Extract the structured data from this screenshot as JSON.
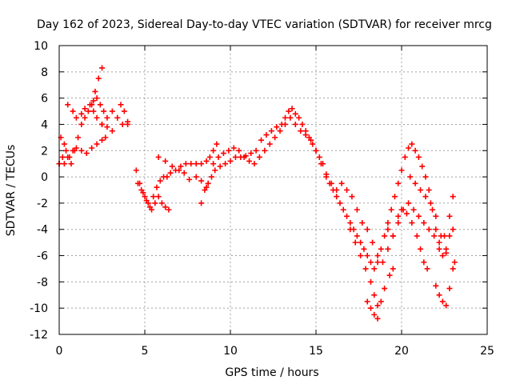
{
  "chart_data": {
    "type": "scatter",
    "title": "Day 162 of 2023, Sidereal Day-to-day VTEC variation (SDTVAR) for receiver mrcg",
    "xlabel": "GPS time / hours",
    "ylabel": "SDTVAR / TECUs",
    "xlim": [
      0,
      25
    ],
    "ylim": [
      -12,
      10
    ],
    "x_ticks": [
      0,
      5,
      10,
      15,
      20,
      25
    ],
    "x_tick_labels": [
      "0",
      "5",
      "10",
      "15",
      "20",
      "25"
    ],
    "y_ticks": [
      -12,
      -10,
      -8,
      -6,
      -4,
      -2,
      0,
      2,
      4,
      6,
      8,
      10
    ],
    "y_tick_labels": [
      "-12",
      "-10",
      "-8",
      "-6",
      "-4",
      "-2",
      "0",
      "2",
      "4",
      "6",
      "8",
      "10"
    ],
    "grid": true,
    "marker": "+",
    "color": "#ff0000",
    "series": [
      {
        "points": [
          [
            0.0,
            1.0
          ],
          [
            0.1,
            3.0
          ],
          [
            0.3,
            2.5
          ],
          [
            0.5,
            5.5
          ],
          [
            0.8,
            5.0
          ],
          [
            1.0,
            4.5
          ],
          [
            1.3,
            4.8
          ],
          [
            1.5,
            5.2
          ],
          [
            1.8,
            5.5
          ],
          [
            2.0,
            5.8
          ],
          [
            2.2,
            6.0
          ],
          [
            2.4,
            5.5
          ],
          [
            2.6,
            5.0
          ]
        ]
      },
      {
        "points": [
          [
            0.0,
            1.0
          ],
          [
            0.2,
            1.5
          ],
          [
            0.4,
            2.0
          ],
          [
            0.6,
            1.5
          ],
          [
            0.8,
            2.0
          ],
          [
            1.0,
            2.2
          ],
          [
            1.3,
            2.0
          ],
          [
            1.6,
            1.8
          ],
          [
            1.9,
            2.2
          ],
          [
            2.2,
            2.5
          ],
          [
            2.5,
            2.8
          ],
          [
            2.7,
            3.0
          ]
        ]
      },
      {
        "points": [
          [
            0.3,
            1.0
          ],
          [
            0.5,
            1.5
          ],
          [
            0.7,
            1.0
          ],
          [
            0.9,
            2.0
          ],
          [
            1.1,
            3.0
          ],
          [
            1.3,
            4.0
          ],
          [
            1.5,
            4.5
          ],
          [
            1.7,
            5.0
          ],
          [
            1.9,
            5.5
          ],
          [
            2.1,
            6.5
          ],
          [
            2.3,
            7.5
          ],
          [
            2.5,
            8.3
          ]
        ]
      },
      {
        "points": [
          [
            2.0,
            5.0
          ],
          [
            2.2,
            4.5
          ],
          [
            2.5,
            4.0
          ],
          [
            2.8,
            4.5
          ],
          [
            3.1,
            5.0
          ],
          [
            3.4,
            4.5
          ],
          [
            3.7,
            4.0
          ],
          [
            4.0,
            4.0
          ]
        ]
      },
      {
        "points": [
          [
            2.5,
            4.0
          ],
          [
            2.8,
            3.8
          ],
          [
            3.1,
            3.5
          ],
          [
            3.4,
            4.5
          ],
          [
            3.6,
            5.5
          ],
          [
            3.8,
            5.0
          ],
          [
            4.0,
            4.2
          ]
        ]
      },
      {
        "points": [
          [
            4.5,
            0.5
          ],
          [
            4.7,
            -0.5
          ],
          [
            4.9,
            -1.2
          ],
          [
            5.1,
            -1.8
          ],
          [
            5.3,
            -2.3
          ],
          [
            5.5,
            -1.5
          ],
          [
            5.7,
            -0.8
          ],
          [
            5.9,
            -0.3
          ],
          [
            6.1,
            0.0
          ],
          [
            6.3,
            0.0
          ],
          [
            6.5,
            0.3
          ],
          [
            6.8,
            0.5
          ],
          [
            7.1,
            0.8
          ],
          [
            7.4,
            1.0
          ],
          [
            7.7,
            1.0
          ],
          [
            8.0,
            1.0
          ],
          [
            8.3,
            1.0
          ],
          [
            8.6,
            1.2
          ],
          [
            8.8,
            1.5
          ],
          [
            9.0,
            2.0
          ],
          [
            9.2,
            2.5
          ]
        ]
      },
      {
        "points": [
          [
            4.6,
            -0.5
          ],
          [
            4.8,
            -1.0
          ],
          [
            5.0,
            -1.5
          ],
          [
            5.2,
            -2.0
          ],
          [
            5.4,
            -2.5
          ],
          [
            5.6,
            -2.0
          ],
          [
            5.8,
            -1.5
          ],
          [
            6.0,
            -2.0
          ],
          [
            6.2,
            -2.3
          ],
          [
            6.4,
            -2.5
          ]
        ]
      },
      {
        "points": [
          [
            5.8,
            1.5
          ],
          [
            6.2,
            1.2
          ],
          [
            6.6,
            0.8
          ],
          [
            7.0,
            0.5
          ],
          [
            7.3,
            0.3
          ],
          [
            7.6,
            -0.2
          ],
          [
            8.0,
            0.0
          ],
          [
            8.3,
            -0.3
          ],
          [
            8.6,
            -0.8
          ]
        ]
      },
      {
        "points": [
          [
            8.3,
            -2.0
          ],
          [
            8.5,
            -1.0
          ],
          [
            8.7,
            -0.5
          ],
          [
            8.9,
            0.0
          ],
          [
            9.1,
            0.5
          ],
          [
            9.4,
            0.8
          ],
          [
            9.7,
            1.0
          ],
          [
            10.0,
            1.2
          ],
          [
            10.3,
            1.5
          ],
          [
            10.6,
            1.5
          ],
          [
            10.9,
            1.6
          ],
          [
            11.2,
            1.8
          ],
          [
            11.5,
            2.0
          ],
          [
            11.8,
            2.8
          ],
          [
            12.1,
            3.2
          ],
          [
            12.4,
            3.5
          ],
          [
            12.7,
            3.8
          ],
          [
            13.0,
            4.0
          ],
          [
            13.2,
            4.5
          ],
          [
            13.4,
            5.0
          ],
          [
            13.6,
            5.2
          ],
          [
            13.8,
            4.8
          ],
          [
            14.0,
            4.5
          ],
          [
            14.2,
            4.0
          ],
          [
            14.4,
            3.5
          ],
          [
            14.6,
            3.0
          ],
          [
            14.8,
            2.5
          ],
          [
            15.0,
            2.0
          ],
          [
            15.2,
            1.5
          ],
          [
            15.4,
            1.0
          ],
          [
            15.6,
            0.2
          ],
          [
            15.8,
            -0.5
          ],
          [
            16.0,
            -1.0
          ],
          [
            16.2,
            -1.5
          ],
          [
            16.4,
            -2.0
          ],
          [
            16.6,
            -2.5
          ],
          [
            16.8,
            -3.0
          ],
          [
            17.0,
            -3.5
          ],
          [
            17.2,
            -4.0
          ],
          [
            17.4,
            -4.5
          ],
          [
            17.6,
            -5.0
          ],
          [
            17.8,
            -5.5
          ],
          [
            18.0,
            -6.0
          ],
          [
            18.2,
            -6.5
          ],
          [
            18.4,
            -7.0
          ],
          [
            18.6,
            -6.5
          ],
          [
            18.8,
            -5.5
          ],
          [
            19.0,
            -4.5
          ],
          [
            19.2,
            -3.5
          ],
          [
            19.4,
            -2.5
          ],
          [
            19.6,
            -1.5
          ],
          [
            19.8,
            -0.5
          ],
          [
            20.0,
            0.5
          ],
          [
            20.2,
            1.5
          ],
          [
            20.4,
            2.2
          ],
          [
            20.6,
            2.5
          ],
          [
            20.8,
            2.0
          ],
          [
            21.0,
            1.5
          ],
          [
            21.2,
            0.8
          ],
          [
            21.4,
            0.0
          ],
          [
            21.6,
            -1.0
          ],
          [
            21.8,
            -2.5
          ],
          [
            22.0,
            -4.0
          ],
          [
            22.2,
            -5.5
          ],
          [
            22.4,
            -6.0
          ],
          [
            22.6,
            -5.5
          ],
          [
            22.8,
            -4.5
          ],
          [
            23.0,
            -4.0
          ]
        ]
      },
      {
        "points": [
          [
            9.0,
            1.0
          ],
          [
            9.3,
            1.5
          ],
          [
            9.6,
            1.8
          ],
          [
            9.9,
            2.0
          ],
          [
            10.2,
            2.2
          ],
          [
            10.5,
            2.0
          ],
          [
            10.8,
            1.5
          ],
          [
            11.1,
            1.2
          ],
          [
            11.4,
            1.0
          ],
          [
            11.7,
            1.5
          ],
          [
            12.0,
            2.0
          ],
          [
            12.3,
            2.5
          ],
          [
            12.6,
            3.0
          ],
          [
            12.9,
            3.5
          ],
          [
            13.2,
            4.0
          ],
          [
            13.5,
            4.5
          ],
          [
            13.8,
            4.0
          ],
          [
            14.1,
            3.5
          ],
          [
            14.4,
            3.2
          ],
          [
            14.7,
            2.8
          ],
          [
            15.0,
            2.0
          ],
          [
            15.3,
            1.0
          ],
          [
            15.6,
            0.0
          ],
          [
            15.9,
            -0.5
          ],
          [
            16.2,
            -1.0
          ],
          [
            16.5,
            -0.5
          ],
          [
            16.8,
            -1.0
          ],
          [
            17.1,
            -1.5
          ],
          [
            17.4,
            -2.5
          ],
          [
            17.7,
            -3.5
          ],
          [
            18.0,
            -4.0
          ],
          [
            18.3,
            -5.0
          ],
          [
            18.6,
            -6.0
          ],
          [
            18.9,
            -6.5
          ],
          [
            19.2,
            -5.5
          ],
          [
            19.5,
            -4.5
          ],
          [
            19.8,
            -3.5
          ],
          [
            20.1,
            -2.5
          ],
          [
            20.4,
            -2.0
          ],
          [
            20.7,
            -2.5
          ],
          [
            21.0,
            -3.0
          ],
          [
            21.3,
            -3.5
          ],
          [
            21.6,
            -4.0
          ],
          [
            21.9,
            -4.5
          ],
          [
            22.2,
            -5.0
          ],
          [
            22.5,
            -4.5
          ],
          [
            22.8,
            -3.0
          ],
          [
            23.0,
            -1.5
          ]
        ]
      },
      {
        "points": [
          [
            17.0,
            -4.0
          ],
          [
            17.3,
            -5.0
          ],
          [
            17.6,
            -6.0
          ],
          [
            17.9,
            -7.0
          ],
          [
            18.2,
            -8.0
          ],
          [
            18.4,
            -9.0
          ],
          [
            18.6,
            -9.8
          ],
          [
            18.8,
            -9.5
          ],
          [
            19.0,
            -8.5
          ],
          [
            19.3,
            -7.5
          ],
          [
            19.5,
            -7.0
          ]
        ]
      },
      {
        "points": [
          [
            18.0,
            -9.5
          ],
          [
            18.2,
            -10.0
          ],
          [
            18.4,
            -10.5
          ],
          [
            18.6,
            -10.8
          ]
        ]
      },
      {
        "points": [
          [
            19.2,
            -4.0
          ],
          [
            19.5,
            -4.5
          ],
          [
            19.8,
            -3.0
          ],
          [
            20.0,
            -2.5
          ],
          [
            20.3,
            -2.8
          ],
          [
            20.6,
            -3.5
          ],
          [
            20.9,
            -4.5
          ],
          [
            21.1,
            -5.5
          ],
          [
            21.3,
            -6.5
          ],
          [
            21.5,
            -7.0
          ]
        ]
      },
      {
        "points": [
          [
            20.5,
            0.0
          ],
          [
            20.8,
            -0.5
          ],
          [
            21.1,
            -1.0
          ],
          [
            21.4,
            -1.5
          ],
          [
            21.7,
            -2.0
          ],
          [
            22.0,
            -3.0
          ],
          [
            22.3,
            -4.5
          ],
          [
            22.6,
            -5.8
          ]
        ]
      },
      {
        "points": [
          [
            22.0,
            -8.3
          ],
          [
            22.2,
            -9.0
          ],
          [
            22.4,
            -9.5
          ],
          [
            22.6,
            -9.8
          ],
          [
            22.8,
            -8.5
          ],
          [
            23.0,
            -7.0
          ],
          [
            23.1,
            -6.5
          ]
        ]
      }
    ]
  }
}
